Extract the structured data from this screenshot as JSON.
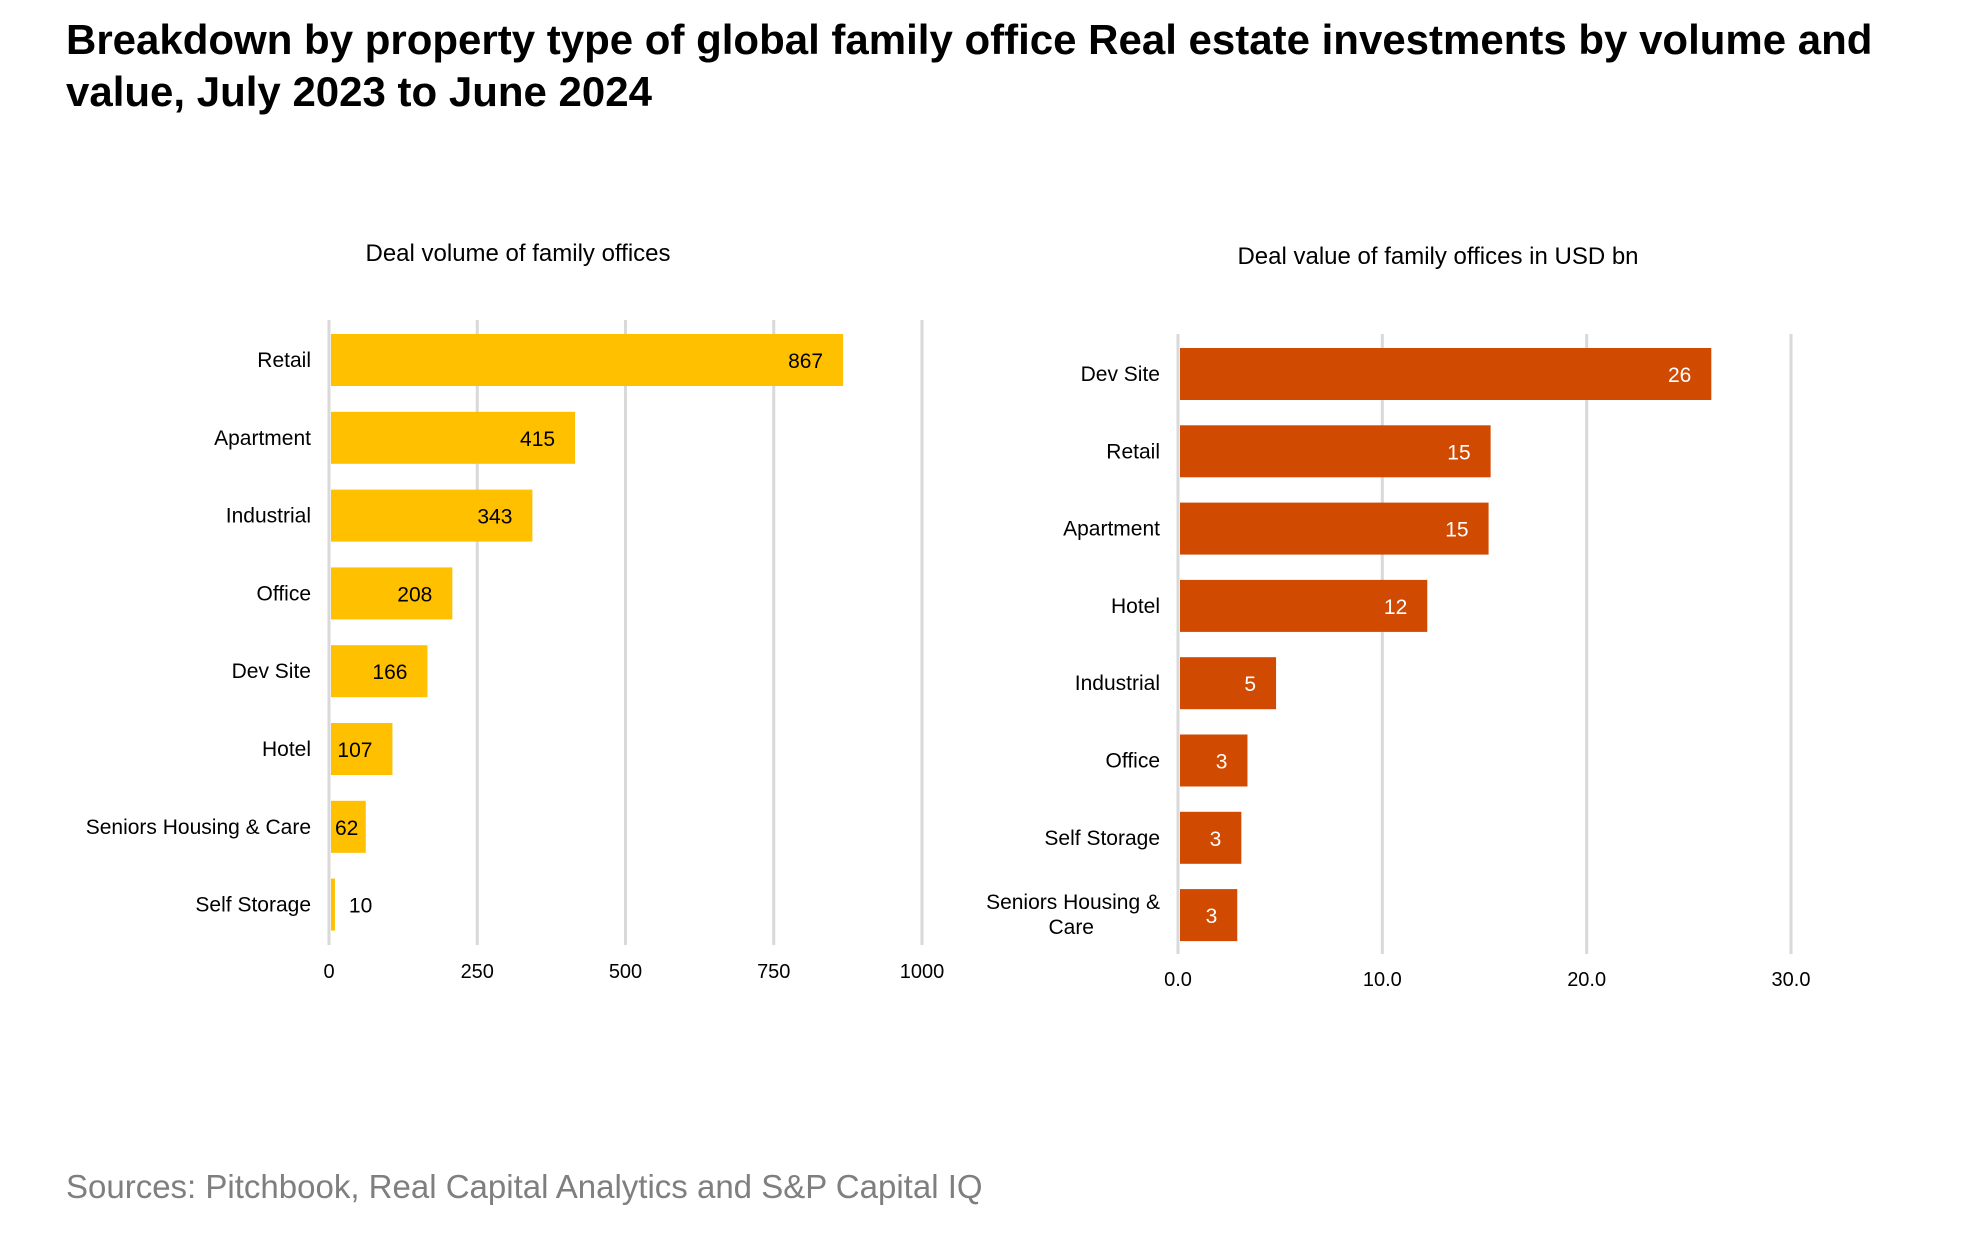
{
  "title": "Breakdown by property type of global family office Real estate investments by volume and value, July 2023 to June 2024",
  "source": "Sources: Pitchbook, Real Capital Analytics and S&P Capital IQ",
  "chart_data": [
    {
      "type": "bar",
      "orientation": "horizontal",
      "title": "Deal volume of family offices",
      "categories": [
        "Retail",
        "Apartment",
        "Industrial",
        "Office",
        "Dev Site",
        "Hotel",
        "Seniors Housing & Care",
        "Self Storage"
      ],
      "values": [
        867,
        415,
        343,
        208,
        166,
        107,
        62,
        10
      ],
      "data_labels": [
        "867",
        "415",
        "343",
        "208",
        "166",
        "107",
        "62",
        "10"
      ],
      "xlim": [
        0,
        1000
      ],
      "ticks": [
        0,
        250,
        500,
        750,
        1000
      ],
      "tick_labels": [
        "0",
        "250",
        "500",
        "750",
        "1000"
      ],
      "grid": true,
      "bar_color": "#FFC000",
      "label_color": "#000000"
    },
    {
      "type": "bar",
      "orientation": "horizontal",
      "title": "Deal value of family offices in USD bn",
      "categories": [
        "Dev Site",
        "Retail",
        "Apartment",
        "Hotel",
        "Industrial",
        "Office",
        "Self Storage",
        "Seniors Housing & Care"
      ],
      "values": [
        26.1,
        15.3,
        15.2,
        12.2,
        4.8,
        3.4,
        3.1,
        2.9
      ],
      "data_labels": [
        "26",
        "15",
        "15",
        "12",
        "5",
        "3",
        "3",
        "3"
      ],
      "xlim": [
        0,
        30
      ],
      "ticks": [
        0,
        10,
        20,
        30
      ],
      "tick_labels": [
        "0.0",
        "10.0",
        "20.0",
        "30.0"
      ],
      "grid": true,
      "bar_color": "#D04A02",
      "label_color": "#FFFFFF"
    }
  ]
}
